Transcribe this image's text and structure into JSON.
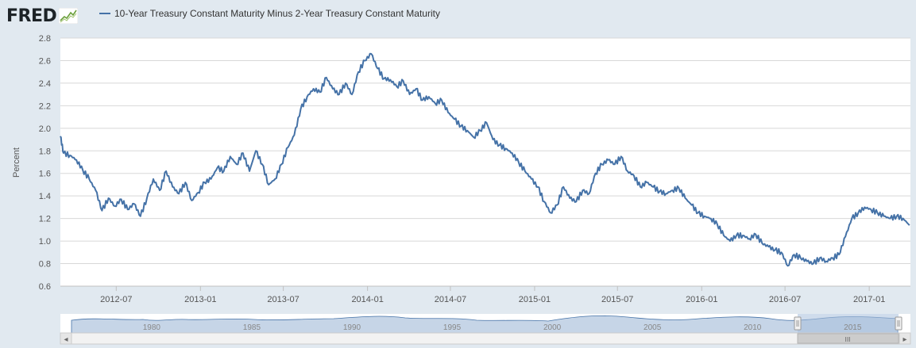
{
  "logo": {
    "text": "FRED",
    "icon": "trend-line-icon"
  },
  "legend": {
    "label": "10-Year Treasury Constant Maturity Minus 2-Year Treasury Constant Maturity",
    "color": "#4572a7"
  },
  "colors": {
    "background": "#e1e9f0",
    "plot_background": "#ffffff",
    "series": "#4572a7",
    "grid": "#d8d8d8",
    "navigator_fill": "#a8c0dc"
  },
  "chart_data": {
    "type": "line",
    "title": "10-Year Treasury Constant Maturity Minus 2-Year Treasury Constant Maturity",
    "xlabel": "",
    "ylabel": "Percent",
    "ylim": [
      0.6,
      2.8
    ],
    "xlim": [
      "2012-03-01",
      "2017-04-01"
    ],
    "y_ticks": [
      "0.6",
      "0.8",
      "1.0",
      "1.2",
      "1.4",
      "1.6",
      "1.8",
      "2.0",
      "2.2",
      "2.4",
      "2.6",
      "2.8"
    ],
    "x_ticks": [
      "2012-07",
      "2013-01",
      "2013-07",
      "2014-01",
      "2014-07",
      "2015-01",
      "2015-07",
      "2016-01",
      "2016-07",
      "2017-01"
    ],
    "grid": true,
    "series": [
      {
        "name": "10-Year Treasury Constant Maturity Minus 2-Year Treasury Constant Maturity",
        "points": [
          [
            "2012-03-01",
            1.93
          ],
          [
            "2012-03-08",
            1.78
          ],
          [
            "2012-03-22",
            1.76
          ],
          [
            "2012-04-05",
            1.72
          ],
          [
            "2012-04-19",
            1.63
          ],
          [
            "2012-05-03",
            1.55
          ],
          [
            "2012-05-17",
            1.45
          ],
          [
            "2012-05-31",
            1.27
          ],
          [
            "2012-06-14",
            1.38
          ],
          [
            "2012-06-28",
            1.31
          ],
          [
            "2012-07-12",
            1.37
          ],
          [
            "2012-07-26",
            1.28
          ],
          [
            "2012-08-09",
            1.33
          ],
          [
            "2012-08-23",
            1.22
          ],
          [
            "2012-09-06",
            1.38
          ],
          [
            "2012-09-20",
            1.55
          ],
          [
            "2012-10-04",
            1.45
          ],
          [
            "2012-10-18",
            1.62
          ],
          [
            "2012-11-01",
            1.48
          ],
          [
            "2012-11-15",
            1.42
          ],
          [
            "2012-11-29",
            1.52
          ],
          [
            "2012-12-13",
            1.36
          ],
          [
            "2012-12-27",
            1.43
          ],
          [
            "2013-01-10",
            1.52
          ],
          [
            "2013-01-24",
            1.55
          ],
          [
            "2013-02-07",
            1.65
          ],
          [
            "2013-02-21",
            1.62
          ],
          [
            "2013-03-07",
            1.75
          ],
          [
            "2013-03-21",
            1.68
          ],
          [
            "2013-04-04",
            1.78
          ],
          [
            "2013-04-18",
            1.62
          ],
          [
            "2013-05-02",
            1.8
          ],
          [
            "2013-05-16",
            1.68
          ],
          [
            "2013-05-30",
            1.5
          ],
          [
            "2013-06-13",
            1.55
          ],
          [
            "2013-06-27",
            1.68
          ],
          [
            "2013-07-11",
            1.83
          ],
          [
            "2013-07-25",
            1.94
          ],
          [
            "2013-08-08",
            2.17
          ],
          [
            "2013-08-22",
            2.28
          ],
          [
            "2013-09-05",
            2.35
          ],
          [
            "2013-09-19",
            2.32
          ],
          [
            "2013-10-03",
            2.45
          ],
          [
            "2013-10-17",
            2.35
          ],
          [
            "2013-10-31",
            2.3
          ],
          [
            "2013-11-14",
            2.4
          ],
          [
            "2013-11-28",
            2.3
          ],
          [
            "2013-12-12",
            2.5
          ],
          [
            "2013-12-26",
            2.6
          ],
          [
            "2014-01-09",
            2.66
          ],
          [
            "2014-01-23",
            2.53
          ],
          [
            "2014-02-06",
            2.44
          ],
          [
            "2014-02-20",
            2.43
          ],
          [
            "2014-03-06",
            2.37
          ],
          [
            "2014-03-20",
            2.42
          ],
          [
            "2014-04-03",
            2.3
          ],
          [
            "2014-04-17",
            2.35
          ],
          [
            "2014-05-01",
            2.25
          ],
          [
            "2014-05-15",
            2.28
          ],
          [
            "2014-05-29",
            2.22
          ],
          [
            "2014-06-12",
            2.25
          ],
          [
            "2014-06-26",
            2.14
          ],
          [
            "2014-07-10",
            2.08
          ],
          [
            "2014-07-24",
            2.02
          ],
          [
            "2014-08-07",
            1.98
          ],
          [
            "2014-08-21",
            1.92
          ],
          [
            "2014-09-04",
            1.98
          ],
          [
            "2014-09-18",
            2.05
          ],
          [
            "2014-10-02",
            1.9
          ],
          [
            "2014-10-16",
            1.85
          ],
          [
            "2014-10-30",
            1.82
          ],
          [
            "2014-11-13",
            1.78
          ],
          [
            "2014-11-27",
            1.7
          ],
          [
            "2014-12-11",
            1.62
          ],
          [
            "2014-12-25",
            1.55
          ],
          [
            "2015-01-08",
            1.48
          ],
          [
            "2015-01-22",
            1.35
          ],
          [
            "2015-02-05",
            1.25
          ],
          [
            "2015-02-19",
            1.32
          ],
          [
            "2015-03-05",
            1.48
          ],
          [
            "2015-03-19",
            1.38
          ],
          [
            "2015-04-02",
            1.35
          ],
          [
            "2015-04-16",
            1.45
          ],
          [
            "2015-04-30",
            1.42
          ],
          [
            "2015-05-14",
            1.6
          ],
          [
            "2015-05-28",
            1.68
          ],
          [
            "2015-06-11",
            1.72
          ],
          [
            "2015-06-25",
            1.68
          ],
          [
            "2015-07-09",
            1.75
          ],
          [
            "2015-07-23",
            1.62
          ],
          [
            "2015-08-06",
            1.58
          ],
          [
            "2015-08-20",
            1.48
          ],
          [
            "2015-09-03",
            1.52
          ],
          [
            "2015-09-17",
            1.48
          ],
          [
            "2015-10-01",
            1.44
          ],
          [
            "2015-10-15",
            1.42
          ],
          [
            "2015-10-29",
            1.45
          ],
          [
            "2015-11-12",
            1.47
          ],
          [
            "2015-11-26",
            1.38
          ],
          [
            "2015-12-10",
            1.32
          ],
          [
            "2015-12-24",
            1.25
          ],
          [
            "2016-01-07",
            1.22
          ],
          [
            "2016-01-21",
            1.2
          ],
          [
            "2016-02-04",
            1.15
          ],
          [
            "2016-02-18",
            1.05
          ],
          [
            "2016-03-03",
            1.0
          ],
          [
            "2016-03-17",
            1.05
          ],
          [
            "2016-03-31",
            1.05
          ],
          [
            "2016-04-14",
            1.02
          ],
          [
            "2016-04-28",
            1.06
          ],
          [
            "2016-05-12",
            0.98
          ],
          [
            "2016-05-26",
            0.95
          ],
          [
            "2016-06-09",
            0.92
          ],
          [
            "2016-06-23",
            0.9
          ],
          [
            "2016-07-07",
            0.78
          ],
          [
            "2016-07-21",
            0.88
          ],
          [
            "2016-08-04",
            0.85
          ],
          [
            "2016-08-18",
            0.82
          ],
          [
            "2016-09-01",
            0.8
          ],
          [
            "2016-09-15",
            0.85
          ],
          [
            "2016-09-29",
            0.82
          ],
          [
            "2016-10-13",
            0.85
          ],
          [
            "2016-10-27",
            0.88
          ],
          [
            "2016-11-10",
            1.04
          ],
          [
            "2016-11-24",
            1.2
          ],
          [
            "2016-12-08",
            1.25
          ],
          [
            "2016-12-22",
            1.3
          ],
          [
            "2017-01-05",
            1.28
          ],
          [
            "2017-01-19",
            1.25
          ],
          [
            "2017-02-02",
            1.22
          ],
          [
            "2017-02-16",
            1.2
          ],
          [
            "2017-03-02",
            1.22
          ],
          [
            "2017-03-16",
            1.2
          ],
          [
            "2017-03-30",
            1.14
          ]
        ]
      }
    ]
  },
  "navigator": {
    "labels": [
      "1980",
      "1985",
      "1990",
      "1995",
      "2000",
      "2005",
      "2010",
      "2015"
    ]
  },
  "scrollbar": {
    "left_arrow": "◂",
    "right_arrow": "▸",
    "grip": "III"
  }
}
